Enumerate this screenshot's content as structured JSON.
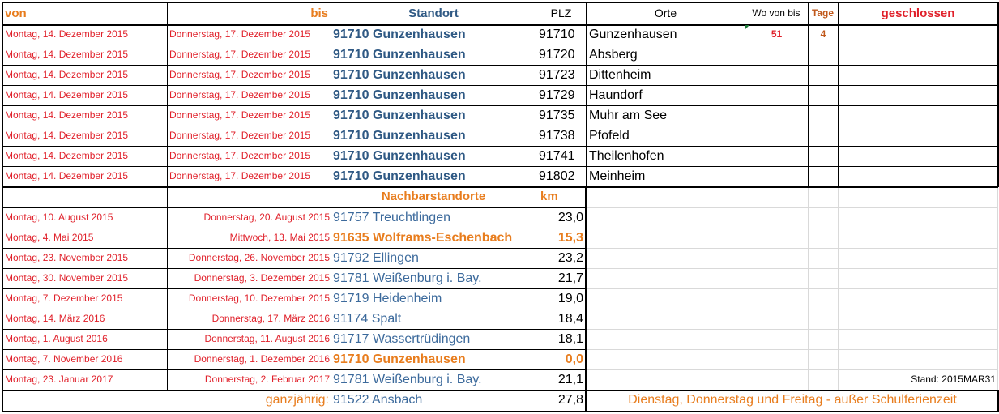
{
  "header": {
    "von": "von",
    "bis": "bis",
    "standort": "Standort",
    "plz": "PLZ",
    "orte": "Orte",
    "wo_von_bis": "Wo von bis",
    "tage": "Tage",
    "geschlossen": "geschlossen"
  },
  "main_rows": [
    {
      "von": "Montag, 14. Dezember 2015",
      "bis": "Donnerstag, 17. Dezember 2015",
      "standort": "91710 Gunzenhausen",
      "plz": "91710",
      "ort": "Gunzenhausen",
      "wo": "51",
      "tage": "4"
    },
    {
      "von": "Montag, 14. Dezember 2015",
      "bis": "Donnerstag, 17. Dezember 2015",
      "standort": "91710 Gunzenhausen",
      "plz": "91720",
      "ort": "Absberg",
      "wo": "",
      "tage": ""
    },
    {
      "von": "Montag, 14. Dezember 2015",
      "bis": "Donnerstag, 17. Dezember 2015",
      "standort": "91710 Gunzenhausen",
      "plz": "91723",
      "ort": "Dittenheim",
      "wo": "",
      "tage": ""
    },
    {
      "von": "Montag, 14. Dezember 2015",
      "bis": "Donnerstag, 17. Dezember 2015",
      "standort": "91710 Gunzenhausen",
      "plz": "91729",
      "ort": "Haundorf",
      "wo": "",
      "tage": ""
    },
    {
      "von": "Montag, 14. Dezember 2015",
      "bis": "Donnerstag, 17. Dezember 2015",
      "standort": "91710 Gunzenhausen",
      "plz": "91735",
      "ort": "Muhr am See",
      "wo": "",
      "tage": ""
    },
    {
      "von": "Montag, 14. Dezember 2015",
      "bis": "Donnerstag, 17. Dezember 2015",
      "standort": "91710 Gunzenhausen",
      "plz": "91738",
      "ort": "Pfofeld",
      "wo": "",
      "tage": ""
    },
    {
      "von": "Montag, 14. Dezember 2015",
      "bis": "Donnerstag, 17. Dezember 2015",
      "standort": "91710 Gunzenhausen",
      "plz": "91741",
      "ort": "Theilenhofen",
      "wo": "",
      "tage": ""
    },
    {
      "von": "Montag, 14. Dezember 2015",
      "bis": "Donnerstag, 17. Dezember 2015",
      "standort": "91710 Gunzenhausen",
      "plz": "91802",
      "ort": "Meinheim",
      "wo": "",
      "tage": ""
    }
  ],
  "neighbor_header": {
    "nachbarstandorte": "Nachbarstandorte",
    "km": "km"
  },
  "neighbor_rows": [
    {
      "von": "Montag, 10. August 2015",
      "bis": "Donnerstag, 20. August 2015",
      "standort": "91757 Treuchtlingen",
      "km": "23,0",
      "highlight": false
    },
    {
      "von": "Montag, 4. Mai 2015",
      "bis": "Mittwoch, 13. Mai 2015",
      "standort": "91635 Wolframs-Eschenbach",
      "km": "15,3",
      "highlight": true
    },
    {
      "von": "Montag, 23. November 2015",
      "bis": "Donnerstag, 26. November 2015",
      "standort": "91792 Ellingen",
      "km": "23,2",
      "highlight": false
    },
    {
      "von": "Montag, 30. November 2015",
      "bis": "Donnerstag, 3. Dezember 2015",
      "standort": "91781 Weißenburg i. Bay.",
      "km": "21,7",
      "highlight": false
    },
    {
      "von": "Montag, 7. Dezember 2015",
      "bis": "Donnerstag, 10. Dezember 2015",
      "standort": "91719 Heidenheim",
      "km": "19,0",
      "highlight": false
    },
    {
      "von": "Montag, 14. März 2016",
      "bis": "Donnerstag, 17. März 2016",
      "standort": "91174 Spalt",
      "km": "18,4",
      "highlight": false
    },
    {
      "von": "Montag, 1. August 2016",
      "bis": "Donnerstag, 11. August 2016",
      "standort": "91717 Wassertrüdingen",
      "km": "18,1",
      "highlight": false
    },
    {
      "von": "Montag, 7. November 2016",
      "bis": "Donnerstag, 1. Dezember 2016",
      "standort": "91710 Gunzenhausen",
      "km": "0,0",
      "highlight": true
    },
    {
      "von": "Montag, 23. Januar 2017",
      "bis": "Donnerstag, 2. Februar 2017",
      "standort": "91781 Weißenburg i. Bay.",
      "km": "21,1",
      "highlight": false
    }
  ],
  "stand": "Stand: 2015MAR31",
  "footer": {
    "label": "ganzjährig:",
    "standort": "91522 Ansbach",
    "km": "27,8",
    "note": "Dienstag, Donnerstag und Freitag - außer Schulferienzeit"
  },
  "colors": {
    "red": "#e0202a",
    "orange": "#e87d1e",
    "blue": "#3c6a9c",
    "navy": "#2f5984"
  }
}
